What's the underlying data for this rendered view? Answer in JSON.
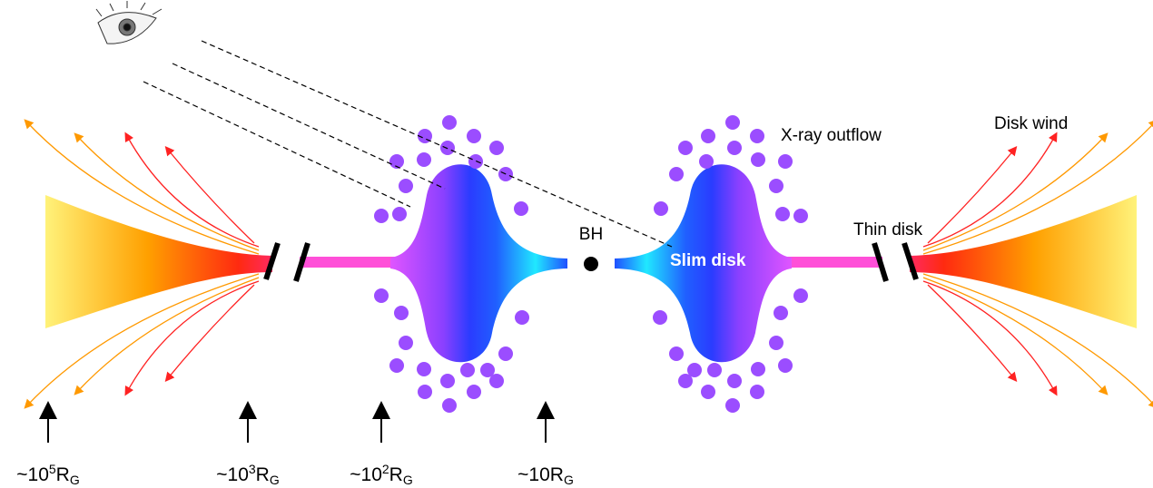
{
  "labels": {
    "outflow": "X-ray outflow",
    "wind": "Disk wind",
    "bh": "BH",
    "thin": "Thin disk",
    "slim": "Slim disk"
  },
  "scale_labels": [
    {
      "base": "~10",
      "sup": "5",
      "unit": "R",
      "sub": "G"
    },
    {
      "base": "~10",
      "sup": "3",
      "unit": "R",
      "sub": "G"
    },
    {
      "base": "~10",
      "sup": "2",
      "unit": "R",
      "sub": "G"
    },
    {
      "base": "~10",
      "unit": "R",
      "sub": "G"
    }
  ]
}
